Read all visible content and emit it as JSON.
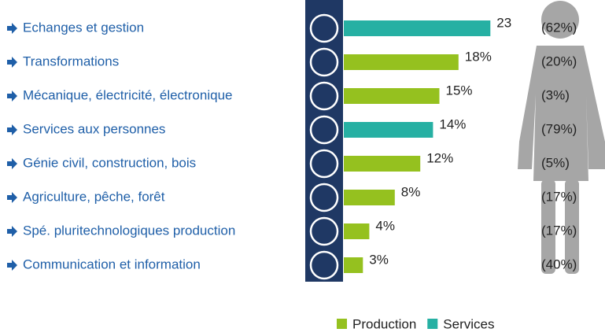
{
  "chart_data": {
    "type": "bar",
    "categories": [
      "Echanges et gestion",
      "Transformations",
      "Mécanique, électricité, électronique",
      "Services aux personnes",
      "Génie civil, construction, bois",
      "Agriculture, pêche, forêt",
      "Spé. pluritechnologiques production",
      "Communication et information"
    ],
    "series": [
      {
        "name": "Production",
        "color": "#95c11f",
        "values": [
          null,
          18,
          15,
          null,
          12,
          8,
          4,
          3
        ],
        "value_labels": [
          null,
          "18%",
          "15%",
          null,
          "12%",
          "8%",
          "4%",
          "3%"
        ]
      },
      {
        "name": "Services",
        "color": "#26b0a3",
        "values": [
          23,
          null,
          null,
          14,
          null,
          null,
          null,
          null
        ],
        "value_labels": [
          "23",
          null,
          null,
          "14%",
          null,
          null,
          null,
          null
        ]
      }
    ],
    "female_shares": [
      "(62%)",
      "(20%)",
      "(3%)",
      "(79%)",
      "(5%)",
      "(17%)",
      "(17%)",
      "(40%)"
    ]
  }
}
